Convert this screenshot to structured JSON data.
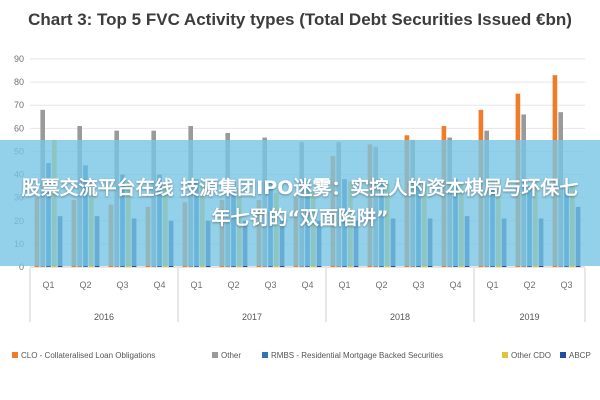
{
  "chart_data": {
    "type": "bar",
    "title": "Chart 3: Top 5 FVC Activity types (Total Debt Securities Issued €bn)",
    "ylim": [
      0,
      90
    ],
    "yticks": [
      0,
      10,
      20,
      30,
      40,
      50,
      60,
      70,
      80,
      90
    ],
    "grid": true,
    "legend": "bottom",
    "categories": [
      "Q1",
      "Q2",
      "Q3",
      "Q4",
      "Q1",
      "Q2",
      "Q3",
      "Q4",
      "Q1",
      "Q2",
      "Q3",
      "Q4",
      "Q1",
      "Q2",
      "Q3"
    ],
    "years": [
      {
        "label": "2016",
        "quarters": 4
      },
      {
        "label": "2017",
        "quarters": 4
      },
      {
        "label": "2018",
        "quarters": 4
      },
      {
        "label": "2019",
        "quarters": 3
      }
    ],
    "series": [
      {
        "name": "CLO - Collateralised Loan Obligations",
        "color": "#f07c2a",
        "values": [
          30,
          29,
          27,
          26,
          28,
          29,
          29,
          30,
          48,
          53,
          57,
          61,
          68,
          75,
          83
        ]
      },
      {
        "name": "Other",
        "color": "#9a9a9a",
        "values": [
          68,
          61,
          59,
          59,
          61,
          58,
          56,
          54,
          54,
          52,
          55,
          56,
          59,
          66,
          67
        ]
      },
      {
        "name": "RMBS - Residential Mortgage Backed Securities",
        "color": "#2e75b6",
        "values": [
          45,
          44,
          40,
          40,
          38,
          38,
          37,
          37,
          38,
          37,
          36,
          38,
          37,
          35,
          34
        ]
      },
      {
        "name": "Other CDO",
        "color": "#d9c63b",
        "values": [
          55,
          38,
          37,
          36,
          36,
          34,
          32,
          33,
          37,
          36,
          36,
          37,
          38,
          38,
          36
        ]
      },
      {
        "name": "ABCP",
        "color": "#1f4e9c",
        "values": [
          22,
          22,
          21,
          20,
          20,
          20,
          20,
          20,
          20,
          21,
          21,
          22,
          21,
          21,
          26
        ]
      }
    ]
  },
  "banner": {
    "text": "股票交流平台在线 技源集团IPO迷雾：实控人的资本棋局与环保七年七罚的“双面陷阱”"
  }
}
